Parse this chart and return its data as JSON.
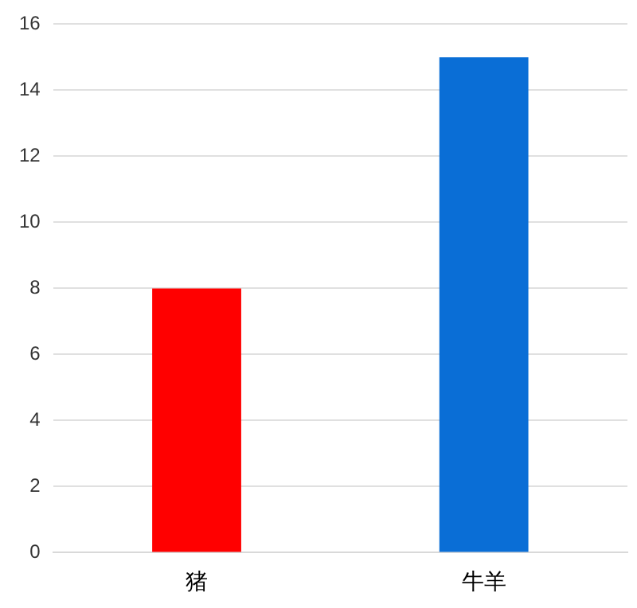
{
  "chart_data": {
    "type": "bar",
    "categories": [
      "猪",
      "牛羊"
    ],
    "values": [
      8,
      15
    ],
    "colors": [
      "#ff0000",
      "#0a6ed6"
    ],
    "ylim": [
      0,
      16
    ],
    "yticks": [
      0,
      2,
      4,
      6,
      8,
      10,
      12,
      14,
      16
    ],
    "grid": "y",
    "legend": false
  }
}
